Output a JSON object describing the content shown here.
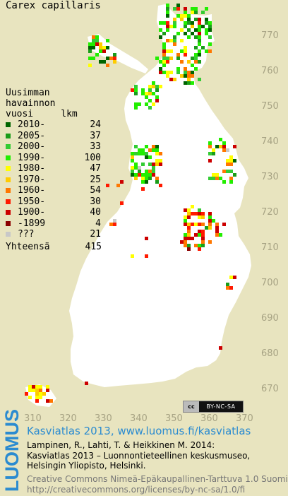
{
  "map": {
    "title": "Carex capillaris",
    "y_ticks": [
      "770",
      "760",
      "750",
      "740",
      "730",
      "720",
      "710",
      "700",
      "690",
      "680",
      "670"
    ],
    "x_ticks": [
      "310",
      "320",
      "330",
      "340",
      "350",
      "360",
      "370"
    ],
    "land_color": "#ffffff",
    "background_color": "#e8e4bf",
    "grid_label_color": "#a7a384"
  },
  "legend": {
    "header": [
      "Uusimman",
      "havainnon",
      "vuosi     lkm"
    ],
    "items": [
      {
        "label": "2010-",
        "count": "24",
        "color": "#006400"
      },
      {
        "label": "2005-",
        "count": "37",
        "color": "#1a9c1a"
      },
      {
        "label": "2000-",
        "count": "33",
        "color": "#33cc33"
      },
      {
        "label": "1990-",
        "count": "100",
        "color": "#22ee00"
      },
      {
        "label": "1980-",
        "count": "47",
        "color": "#ffff00"
      },
      {
        "label": "1970-",
        "count": "25",
        "color": "#ffcc00"
      },
      {
        "label": "1960-",
        "count": "54",
        "color": "#ff7700"
      },
      {
        "label": "1950-",
        "count": "30",
        "color": "#ff1a00"
      },
      {
        "label": "1900-",
        "count": "40",
        "color": "#cc0000"
      },
      {
        "label": "-1899",
        "count": "4",
        "color": "#8b0000"
      },
      {
        "label": "???",
        "count": "21",
        "color": "#c8c8c8"
      }
    ],
    "total_label": "Yhteensä",
    "total_count": "415"
  },
  "badge": {
    "cc": "cc",
    "terms": "BY-NC-SA"
  },
  "footer": {
    "logo_text": "LUOMUS",
    "title": "Kasviatlas 2013, www.luomus.fi/kasviatlas",
    "citation": [
      "Lampinen, R., Lahti, T. & Heikkinen M. 2014:",
      "Kasviatlas 2013 – Luonnontieteellinen keskusmuseo,",
      "Helsingin Yliopisto, Helsinki."
    ],
    "license": [
      "Creative Commons Nimeä-Epäkaupallinen-Tarttuva 1.0 Suomi",
      "http://creativecommons.org/licenses/by-nc-sa/1.0/fi"
    ]
  }
}
